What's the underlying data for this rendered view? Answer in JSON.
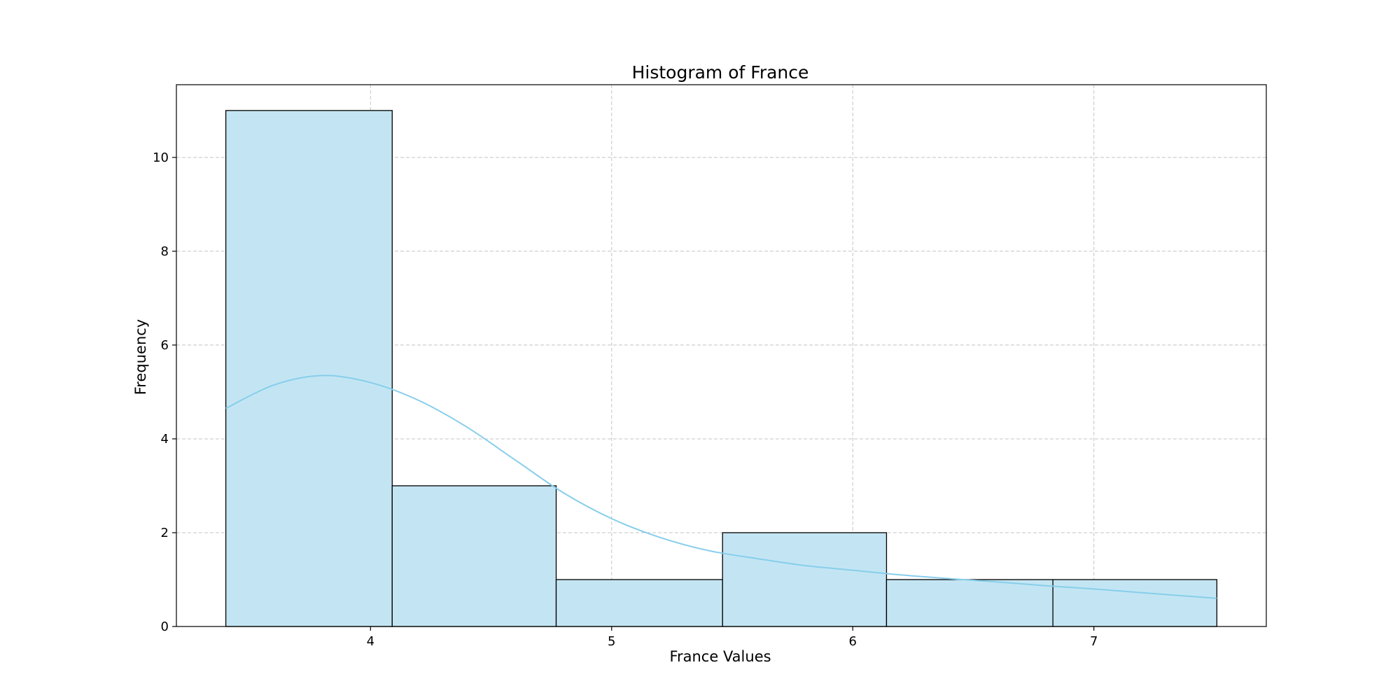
{
  "chart_data": {
    "type": "bar",
    "title": "Histogram of France",
    "xlabel": "France Values",
    "ylabel": "Frequency",
    "bins": [
      {
        "start": 3.4,
        "end": 4.09,
        "count": 11
      },
      {
        "start": 4.09,
        "end": 4.77,
        "count": 3
      },
      {
        "start": 4.77,
        "end": 5.46,
        "count": 1
      },
      {
        "start": 5.46,
        "end": 6.14,
        "count": 2
      },
      {
        "start": 6.14,
        "end": 6.83,
        "count": 1
      },
      {
        "start": 6.83,
        "end": 7.51,
        "count": 1
      }
    ],
    "kde": {
      "x": [
        3.4,
        3.6,
        3.8,
        4.0,
        4.2,
        4.4,
        4.6,
        4.8,
        5.0,
        5.2,
        5.4,
        5.6,
        5.8,
        6.0,
        6.2,
        6.4,
        6.6,
        6.8,
        7.0,
        7.2,
        7.51
      ],
      "y": [
        4.65,
        5.15,
        5.35,
        5.2,
        4.82,
        4.25,
        3.55,
        2.85,
        2.3,
        1.9,
        1.62,
        1.45,
        1.3,
        1.2,
        1.1,
        1.02,
        0.95,
        0.87,
        0.8,
        0.72,
        0.6
      ]
    },
    "xticks": [
      4,
      5,
      6,
      7
    ],
    "yticks": [
      0,
      2,
      4,
      6,
      8,
      10
    ],
    "xlim": [
      3.195,
      7.715
    ],
    "ylim": [
      0,
      11.55
    ],
    "grid": true,
    "colors": {
      "bar_fill": "#c3e5f3",
      "bar_edge": "#000000",
      "kde_line": "#87ceeb",
      "grid": "#c4c4c4"
    }
  }
}
